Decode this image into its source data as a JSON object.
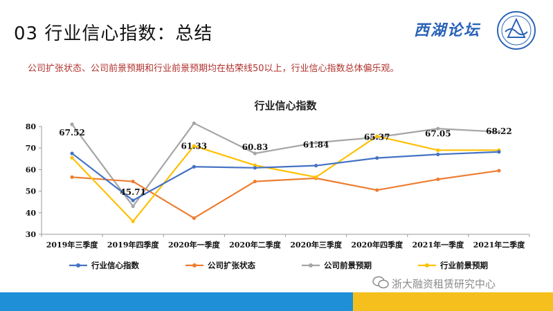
{
  "header": {
    "title": "03 行业信心指数：总结",
    "logo_text": "西湖论坛",
    "subtitle": "公司扩张状态、公司前景预期和行业前景预期均在枯荣线50以上，行业信心指数总体偏乐观。"
  },
  "watermark": "浙大融资租赁研究中心",
  "colors": {
    "footer_blue": "#1f8fd8",
    "footer_yellow": "#f5c01e",
    "subtitle_red": "#b0322e"
  },
  "chart_data": {
    "type": "line",
    "title": "行业信心指数",
    "categories": [
      "2019年三季度",
      "2019年四季度",
      "2020年一季度",
      "2020年二季度",
      "2020年三季度",
      "2020年四季度",
      "2021年一季度",
      "2021年二季度"
    ],
    "ylim": [
      30,
      80
    ],
    "yticks": [
      30,
      40,
      50,
      60,
      70,
      80
    ],
    "grid": false,
    "legend_position": "bottom",
    "series": [
      {
        "name": "行业信心指数",
        "color": "#4472c4",
        "values": [
          67.52,
          45.71,
          61.33,
          60.83,
          61.84,
          65.37,
          67.05,
          68.22
        ],
        "labels": [
          "67.52",
          "45.71",
          "61.33",
          "60.83",
          "61.84",
          "65.37",
          "67.05",
          "68.22"
        ]
      },
      {
        "name": "公司扩张状态",
        "color": "#ed7d31",
        "values": [
          56.5,
          54.5,
          37.5,
          54.5,
          56.0,
          50.5,
          55.5,
          59.5
        ]
      },
      {
        "name": "公司前景预期",
        "color": "#a5a5a5",
        "values": [
          81.0,
          43.0,
          81.5,
          67.5,
          72.5,
          75.0,
          79.0,
          77.5
        ]
      },
      {
        "name": "行业前景预期",
        "color": "#ffc000",
        "values": [
          65.5,
          36.0,
          71.0,
          62.0,
          56.5,
          75.5,
          69.0,
          69.0
        ]
      }
    ]
  }
}
